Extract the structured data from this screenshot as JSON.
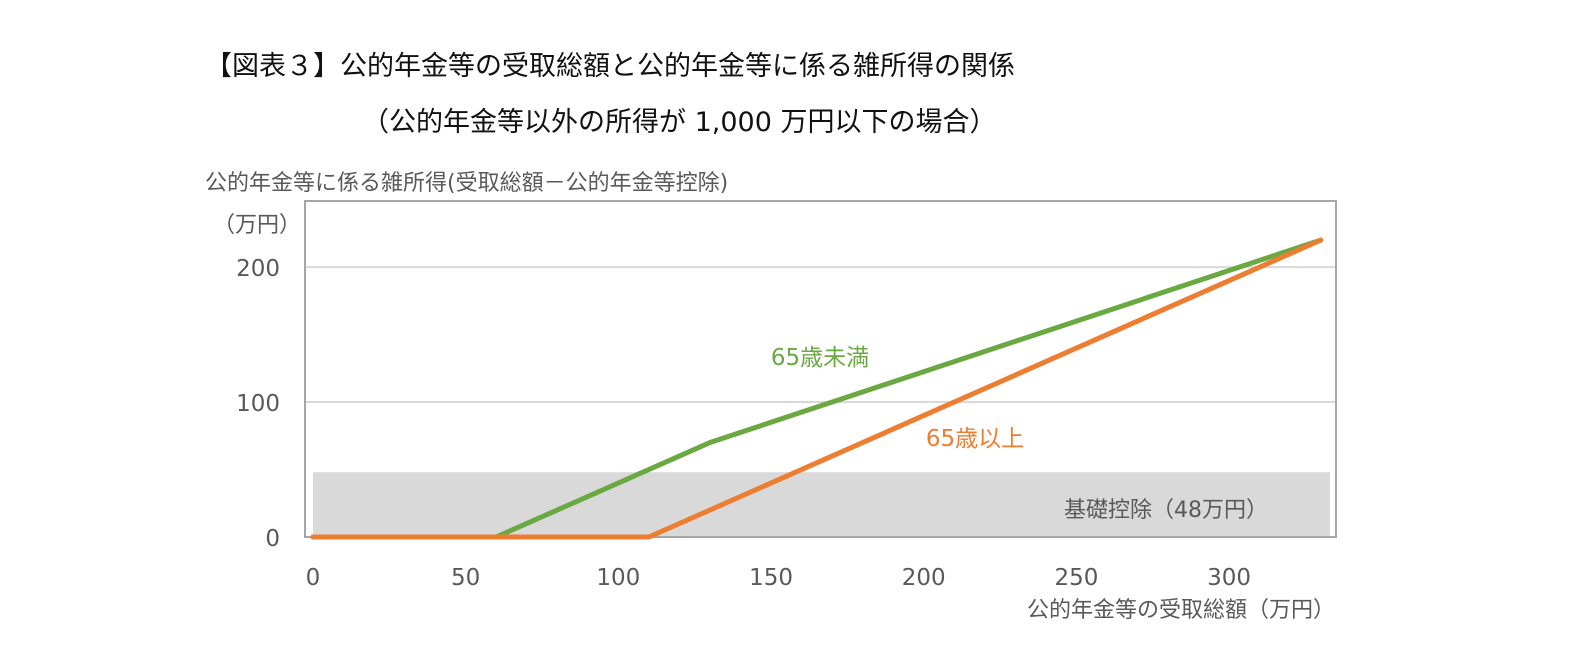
{
  "title": "【図表３】公的年金等の受取総額と公的年金等に係る雑所得の関係",
  "subtitle": "（公的年金等以外の所得が 1,000 万円以下の場合）",
  "chart_data": {
    "type": "line",
    "ylabel": "公的年金等に係る雑所得(受取総額－公的年金等控除)",
    "yunit": "（万円）",
    "xlabel": "公的年金等の受取総額（万円）",
    "xlim": [
      -2.6,
      335
    ],
    "ylim": [
      0,
      249
    ],
    "xticks": [
      0,
      50,
      100,
      150,
      200,
      250,
      300
    ],
    "yticks": [
      0,
      100,
      200
    ],
    "grid": true,
    "series": [
      {
        "name": "65歳未満",
        "color": "#6aa842",
        "x": [
          0,
          60,
          130,
          330
        ],
        "y": [
          0,
          0,
          70,
          220
        ]
      },
      {
        "name": "65歳以上",
        "color": "#ed7d31",
        "x": [
          0,
          110,
          330
        ],
        "y": [
          0,
          0,
          220
        ]
      }
    ],
    "band": {
      "label": "基礎控除（48万円）",
      "y": [
        0,
        48
      ],
      "x": [
        0,
        333
      ],
      "color": "#d9d9d9"
    }
  }
}
